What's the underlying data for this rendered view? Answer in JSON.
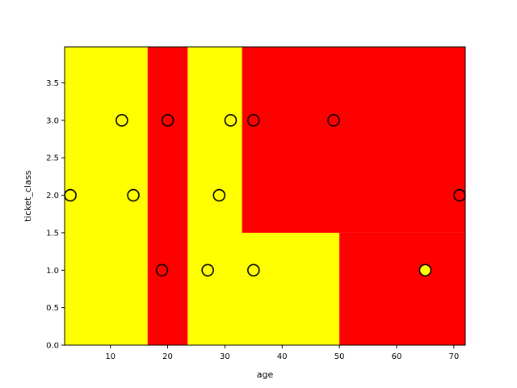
{
  "chart_data": {
    "type": "scatter",
    "title": "",
    "xlabel": "age",
    "ylabel": "ticket_class",
    "xlim": [
      2,
      72
    ],
    "ylim": [
      0,
      3.98
    ],
    "x_ticks": [
      10,
      20,
      30,
      40,
      50,
      60,
      70
    ],
    "x_tick_labels": [
      "10",
      "20",
      "30",
      "40",
      "50",
      "60",
      "70"
    ],
    "y_ticks": [
      0,
      0.5,
      1,
      1.5,
      2,
      2.5,
      3,
      3.5
    ],
    "y_tick_labels": [
      "0.0",
      "0.5",
      "1.0",
      "1.5",
      "2.0",
      "2.5",
      "3.0",
      "3.5"
    ],
    "grid": false,
    "legend": "none",
    "colors": {
      "class_a": "#ffff00",
      "class_b": "#ff0000",
      "marker_edge": "#000000"
    },
    "decision_regions": [
      {
        "x_range": [
          2,
          16.5
        ],
        "y_range": [
          0,
          3.98
        ],
        "class": "class_a"
      },
      {
        "x_range": [
          16.5,
          23.5
        ],
        "y_range": [
          0,
          3.98
        ],
        "class": "class_b"
      },
      {
        "x_range": [
          23.5,
          33
        ],
        "y_range": [
          0,
          3.98
        ],
        "class": "class_a"
      },
      {
        "x_range": [
          33,
          50
        ],
        "y_range": [
          0,
          1.5
        ],
        "class": "class_a"
      },
      {
        "x_range": [
          33,
          72
        ],
        "y_range": [
          1.5,
          3.98
        ],
        "class": "class_b"
      },
      {
        "x_range": [
          50,
          72
        ],
        "y_range": [
          0,
          1.5
        ],
        "class": "class_b"
      }
    ],
    "points": [
      {
        "x": 3,
        "y": 2,
        "class": "class_a"
      },
      {
        "x": 12,
        "y": 3,
        "class": "class_a"
      },
      {
        "x": 14,
        "y": 2,
        "class": "class_a"
      },
      {
        "x": 19,
        "y": 1,
        "class": "class_b"
      },
      {
        "x": 20,
        "y": 3,
        "class": "class_b"
      },
      {
        "x": 27,
        "y": 1,
        "class": "class_a"
      },
      {
        "x": 29,
        "y": 2,
        "class": "class_a"
      },
      {
        "x": 31,
        "y": 3,
        "class": "class_a"
      },
      {
        "x": 35,
        "y": 1,
        "class": "class_a"
      },
      {
        "x": 35,
        "y": 3,
        "class": "class_b"
      },
      {
        "x": 49,
        "y": 3,
        "class": "class_b"
      },
      {
        "x": 65,
        "y": 1,
        "class": "class_a"
      },
      {
        "x": 71,
        "y": 2,
        "class": "class_b"
      }
    ]
  }
}
